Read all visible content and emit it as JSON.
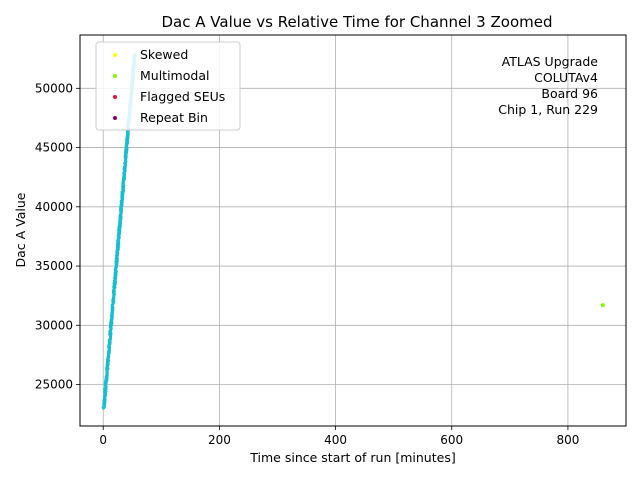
{
  "chart_data": {
    "type": "scatter",
    "title": "Dac A Value vs Relative Time for Channel 3 Zoomed",
    "xlabel": "Time since start of run [minutes]",
    "ylabel": "Dac A Value",
    "xlim": [
      -40,
      900
    ],
    "ylim": [
      21500,
      54500
    ],
    "xticks": [
      0,
      200,
      400,
      600,
      800
    ],
    "yticks": [
      25000,
      30000,
      35000,
      40000,
      45000,
      50000
    ],
    "grid": true,
    "legend_position": "top-left",
    "legend": [
      {
        "label": "Skewed",
        "color": "#ffff00"
      },
      {
        "label": "Multimodal",
        "color": "#7cfc00"
      },
      {
        "label": "Flagged SEUs",
        "color": "#dc143c"
      },
      {
        "label": "Repeat Bin",
        "color": "#800080"
      }
    ],
    "annotation_lines": [
      "ATLAS Upgrade",
      "COLUTAv4",
      "Board 96",
      "Chip 1, Run 229"
    ],
    "main_series": {
      "color": "#17becf",
      "x_start": 1,
      "x_end": 54,
      "y_start": 23000,
      "y_end": 52800
    },
    "outliers": [
      {
        "series": "Multimodal",
        "x": 860,
        "y": 31700
      }
    ]
  }
}
